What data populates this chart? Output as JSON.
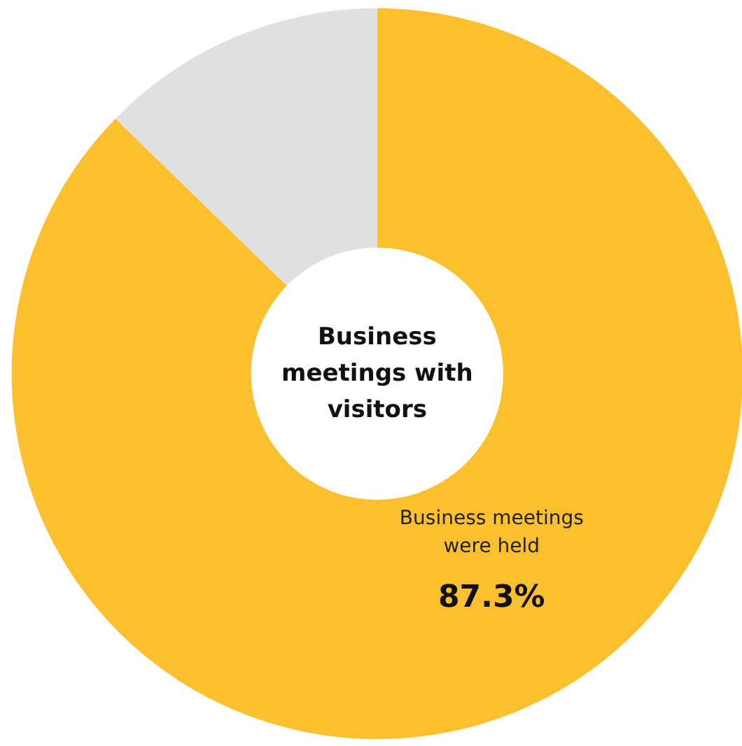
{
  "chart_data": {
    "type": "donut",
    "title": "Business meetings with visitors",
    "categories": [
      "Business meetings were held",
      null
    ],
    "values": [
      87.3,
      12.7
    ],
    "colors": [
      "#fcc02e",
      "#e0e0e0"
    ],
    "value_labels": [
      "87.3%",
      null
    ]
  }
}
